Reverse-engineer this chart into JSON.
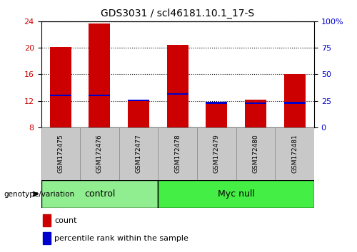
{
  "title": "GDS3031 / scl46181.10.1_17-S",
  "samples": [
    "GSM172475",
    "GSM172476",
    "GSM172477",
    "GSM172478",
    "GSM172479",
    "GSM172480",
    "GSM172481"
  ],
  "count_values": [
    20.1,
    23.7,
    12.1,
    20.5,
    11.7,
    12.2,
    16.0
  ],
  "percentile_values": [
    12.8,
    12.8,
    12.1,
    13.0,
    11.7,
    11.6,
    11.7
  ],
  "bar_bottom": 8.0,
  "ylim_left": [
    8,
    24
  ],
  "ylim_right": [
    0,
    100
  ],
  "yticks_left": [
    8,
    12,
    16,
    20,
    24
  ],
  "yticks_right": [
    0,
    25,
    50,
    75,
    100
  ],
  "ytick_labels_right": [
    "0",
    "25",
    "50",
    "75",
    "100%"
  ],
  "bar_color_red": "#cc0000",
  "bar_color_blue": "#0000cc",
  "bar_width": 0.55,
  "left_axis_color": "#cc0000",
  "right_axis_color": "#0000cc",
  "genotype_label": "genotype/variation",
  "legend_count_label": "count",
  "legend_percentile_label": "percentile rank within the sample",
  "label_bg_color": "#c8c8c8",
  "control_color": "#90ee90",
  "mycnull_color": "#44ee44",
  "group_border_color": "#000000",
  "control_samples_count": 3,
  "mycnull_samples_count": 4
}
